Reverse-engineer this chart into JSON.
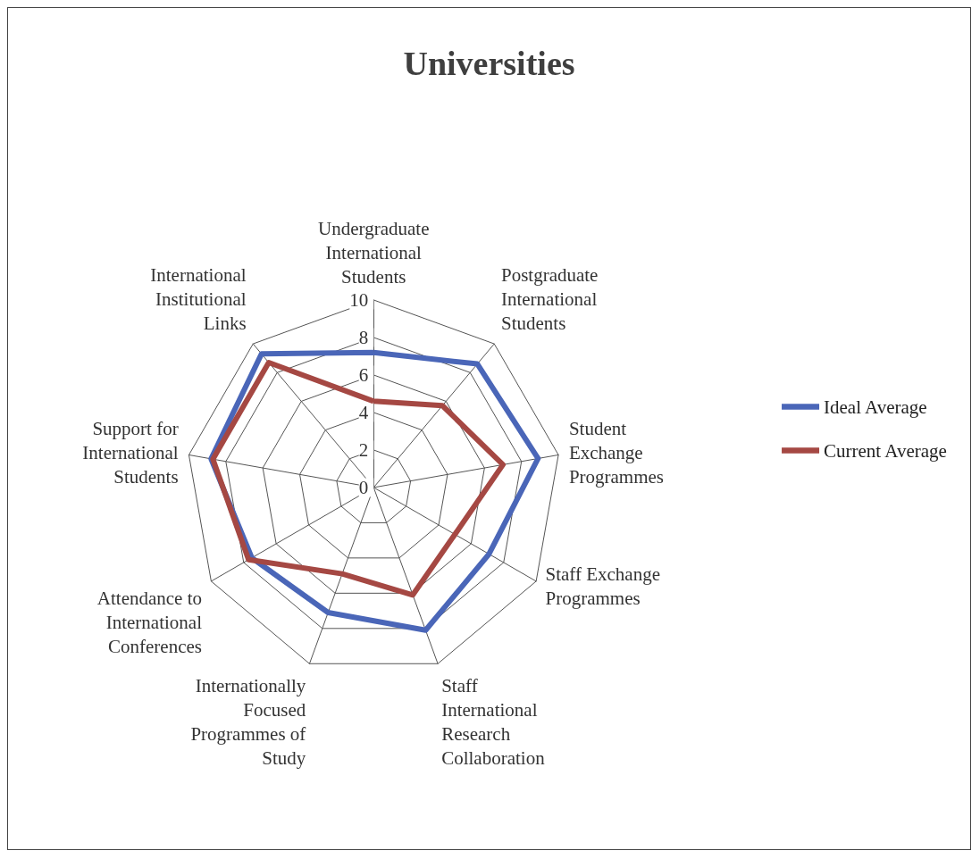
{
  "chart_data": {
    "type": "radar",
    "title": "Universities",
    "categories": [
      "Undergraduate International Students",
      "Postgraduate International Students",
      "Student Exchange Programmes",
      "Staff Exchange Programmes",
      "Staff International Research Collaboration",
      "Internationally Focused Programmes of Study",
      "Attendance to International Conferences",
      "Support for International Students",
      "International Institutional Links"
    ],
    "series": [
      {
        "name": "Ideal Average",
        "color": "#4a66b8",
        "values": [
          7.2,
          8.6,
          8.9,
          7.1,
          8.1,
          7.1,
          7.5,
          8.8,
          9.3
        ]
      },
      {
        "name": "Current Average",
        "color": "#a54843",
        "values": [
          4.6,
          5.7,
          7.0,
          5.0,
          6.1,
          4.9,
          7.7,
          8.7,
          8.7
        ]
      }
    ],
    "ylim": [
      0,
      10
    ],
    "yticks": [
      0,
      2,
      4,
      6,
      8,
      10
    ],
    "legend": "right",
    "marker": "none",
    "grid": true
  }
}
